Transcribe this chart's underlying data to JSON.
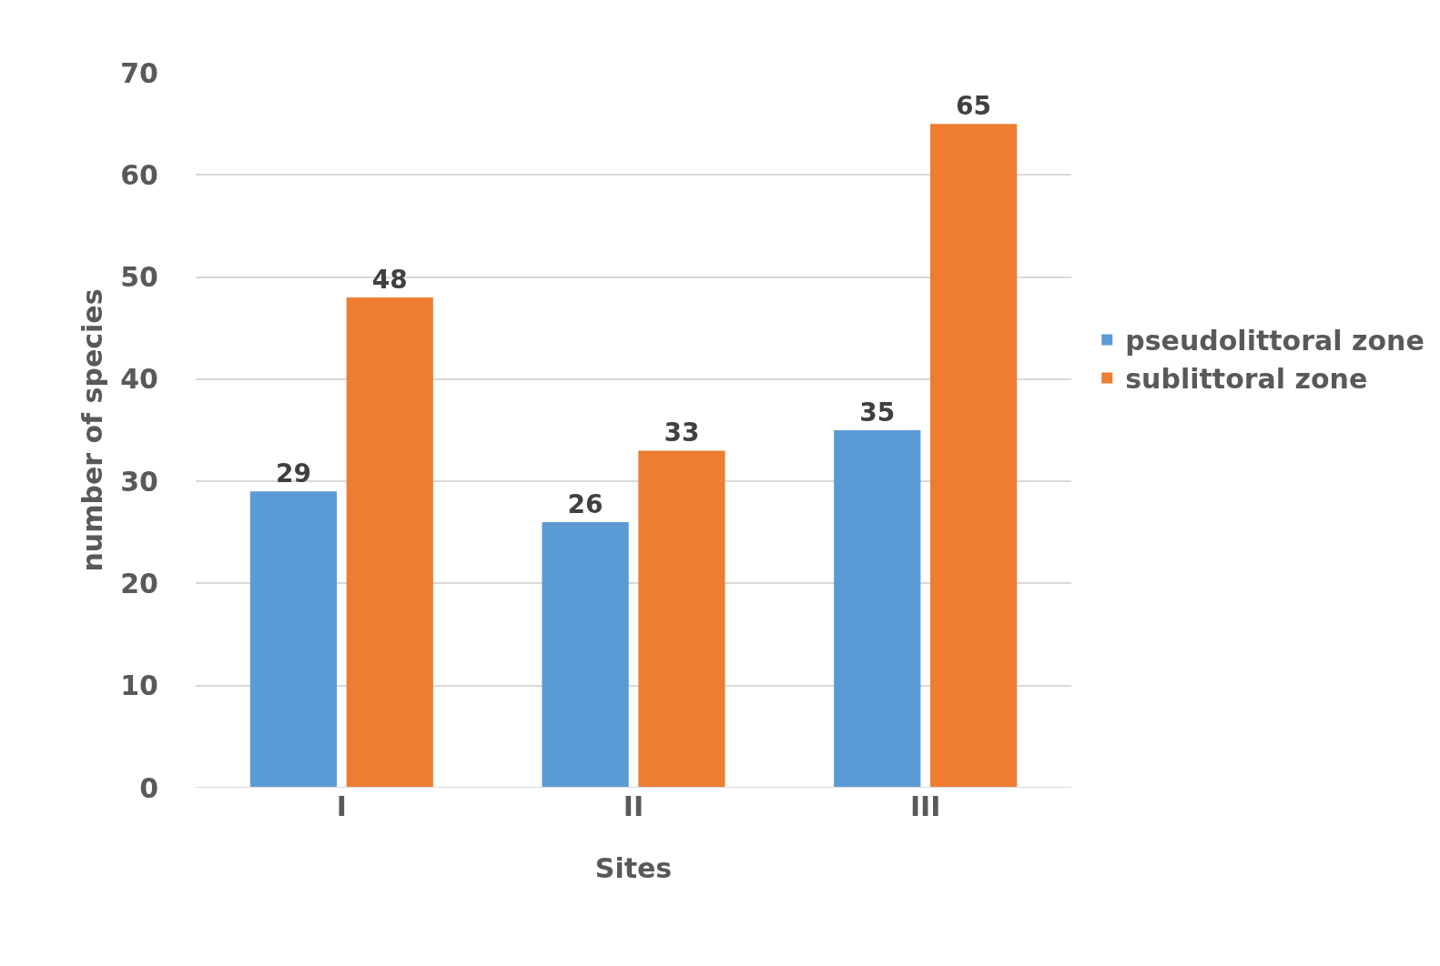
{
  "chart_data": {
    "type": "bar",
    "xlabel": "Sites",
    "ylabel": "number of species",
    "categories": [
      "I",
      "II",
      "III"
    ],
    "series": [
      {
        "name": "pseudolittoral zone",
        "color": "#5b9bd5",
        "values": [
          29,
          26,
          35
        ]
      },
      {
        "name": "sublittoral zone",
        "color": "#ed7d31",
        "values": [
          48,
          33,
          65
        ]
      }
    ],
    "ylim": [
      0,
      70
    ],
    "yticks": [
      0,
      10,
      20,
      30,
      40,
      50,
      60,
      70
    ],
    "grid": "y",
    "legend": "right",
    "data_labels": true
  }
}
